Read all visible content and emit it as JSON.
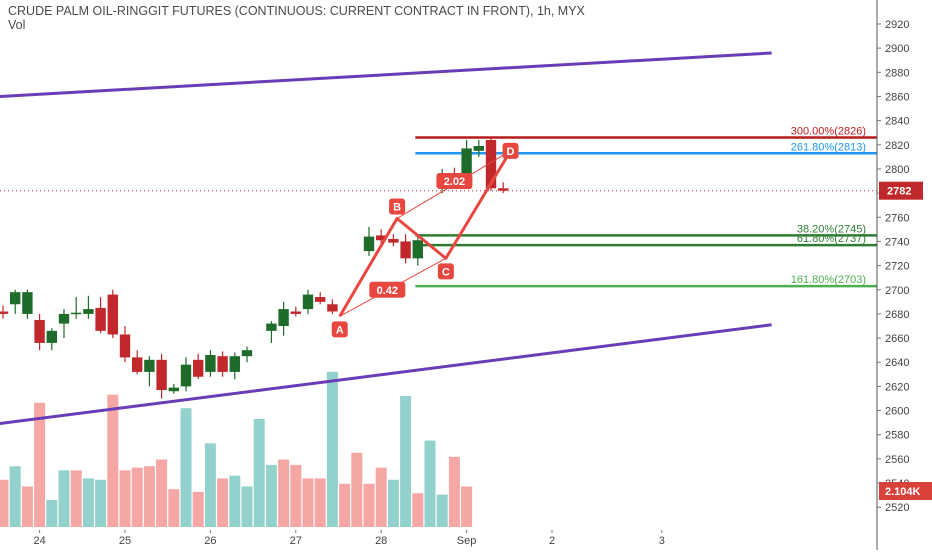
{
  "header": {
    "title": "CRUDE PALM OIL-RINGGIT FUTURES (CONTINUOUS: CURRENT CONTRACT IN FRONT), 1h, MYX",
    "volume_label": "Vol"
  },
  "colors": {
    "up": "#1e6b2a",
    "down": "#c0282b",
    "vol_up": "#93d2cc",
    "vol_down": "#f4a7a5",
    "channel": "#6a3db8",
    "pattern": "#e8473f",
    "fib_300": "#b71c1c",
    "fib_2618": "#2196f3",
    "fib_382": "#2e7d32",
    "fib_618": "#2e7d32",
    "fib_1618": "#4caf50",
    "price_badge": "#c0282b",
    "volume_badge": "#d9413b"
  },
  "chart_data": {
    "type": "candlestick",
    "title": "CRUDE PALM OIL-RINGGIT FUTURES (CONTINUOUS: CURRENT CONTRACT IN FRONT), 1h, MYX",
    "x_ticks": [
      {
        "label": "24",
        "bar": 3
      },
      {
        "label": "25",
        "bar": 10
      },
      {
        "label": "26",
        "bar": 17
      },
      {
        "label": "27",
        "bar": 24
      },
      {
        "label": "28",
        "bar": 31
      },
      {
        "label": "Sep",
        "bar": 38
      },
      {
        "label": "2",
        "bar": 45
      },
      {
        "label": "3",
        "bar": 54
      }
    ],
    "y_ticks": [
      2520,
      2540,
      2560,
      2580,
      2600,
      2620,
      2640,
      2660,
      2680,
      2700,
      2720,
      2740,
      2760,
      2780,
      2800,
      2820,
      2840,
      2860,
      2880,
      2900,
      2920
    ],
    "ylim": [
      2510,
      2930
    ],
    "candles": [
      {
        "o": 2682,
        "h": 2687,
        "l": 2676,
        "c": 2680
      },
      {
        "o": 2688,
        "h": 2700,
        "l": 2680,
        "c": 2698
      },
      {
        "o": 2680,
        "h": 2700,
        "l": 2676,
        "c": 2698
      },
      {
        "o": 2675,
        "h": 2680,
        "l": 2650,
        "c": 2656
      },
      {
        "o": 2656,
        "h": 2668,
        "l": 2650,
        "c": 2666
      },
      {
        "o": 2672,
        "h": 2684,
        "l": 2660,
        "c": 2680
      },
      {
        "o": 2680,
        "h": 2694,
        "l": 2676,
        "c": 2681
      },
      {
        "o": 2680,
        "h": 2695,
        "l": 2676,
        "c": 2684
      },
      {
        "o": 2685,
        "h": 2694,
        "l": 2664,
        "c": 2666
      },
      {
        "o": 2696,
        "h": 2700,
        "l": 2660,
        "c": 2663
      },
      {
        "o": 2663,
        "h": 2670,
        "l": 2640,
        "c": 2644
      },
      {
        "o": 2644,
        "h": 2650,
        "l": 2630,
        "c": 2632
      },
      {
        "o": 2632,
        "h": 2645,
        "l": 2620,
        "c": 2642
      },
      {
        "o": 2642,
        "h": 2647,
        "l": 2610,
        "c": 2617
      },
      {
        "o": 2616,
        "h": 2622,
        "l": 2614,
        "c": 2619
      },
      {
        "o": 2620,
        "h": 2644,
        "l": 2616,
        "c": 2638
      },
      {
        "o": 2642,
        "h": 2647,
        "l": 2626,
        "c": 2628
      },
      {
        "o": 2632,
        "h": 2650,
        "l": 2628,
        "c": 2646
      },
      {
        "o": 2645,
        "h": 2649,
        "l": 2628,
        "c": 2632
      },
      {
        "o": 2632,
        "h": 2648,
        "l": 2626,
        "c": 2645
      },
      {
        "o": 2645,
        "h": 2653,
        "l": 2640,
        "c": 2650
      },
      {
        "o": 2666,
        "h": 2674,
        "l": 2656,
        "c": 2672
      },
      {
        "o": 2670,
        "h": 2690,
        "l": 2662,
        "c": 2684
      },
      {
        "o": 2682,
        "h": 2686,
        "l": 2678,
        "c": 2680
      },
      {
        "o": 2684,
        "h": 2700,
        "l": 2680,
        "c": 2696
      },
      {
        "o": 2694,
        "h": 2698,
        "l": 2688,
        "c": 2690
      },
      {
        "o": 2688,
        "h": 2692,
        "l": 2680,
        "c": 2682
      },
      {
        "o": 2732,
        "h": 2752,
        "l": 2728,
        "c": 2744
      },
      {
        "o": 2745,
        "h": 2750,
        "l": 2738,
        "c": 2741
      },
      {
        "o": 2742,
        "h": 2746,
        "l": 2736,
        "c": 2739
      },
      {
        "o": 2740,
        "h": 2746,
        "l": 2722,
        "c": 2726
      },
      {
        "o": 2726,
        "h": 2744,
        "l": 2720,
        "c": 2741
      },
      {
        "o": 2786,
        "h": 2800,
        "l": 2780,
        "c": 2796
      },
      {
        "o": 2796,
        "h": 2801,
        "l": 2786,
        "c": 2790
      },
      {
        "o": 2796,
        "h": 2824,
        "l": 2792,
        "c": 2817
      },
      {
        "o": 2815,
        "h": 2824,
        "l": 2810,
        "c": 2819
      },
      {
        "o": 2824,
        "h": 2826,
        "l": 2782,
        "c": 2784
      },
      {
        "o": 2784,
        "h": 2789,
        "l": 2780,
        "c": 2782
      }
    ],
    "candle_bars": [
      0,
      1,
      2,
      3,
      4,
      5,
      6,
      7,
      8,
      9,
      10,
      11,
      12,
      13,
      14,
      15,
      16,
      17,
      18,
      19,
      20,
      22,
      23,
      24,
      25,
      26,
      27,
      30,
      31,
      32,
      33,
      34,
      36,
      37,
      38,
      39,
      40,
      41
    ],
    "volume": [
      {
        "v": 0.35,
        "up": false
      },
      {
        "v": 0.45,
        "up": true
      },
      {
        "v": 0.3,
        "up": false
      },
      {
        "v": 0.92,
        "up": false
      },
      {
        "v": 0.2,
        "up": true
      },
      {
        "v": 0.42,
        "up": true
      },
      {
        "v": 0.42,
        "up": false
      },
      {
        "v": 0.36,
        "up": true
      },
      {
        "v": 0.35,
        "up": true
      },
      {
        "v": 0.98,
        "up": false
      },
      {
        "v": 0.42,
        "up": false
      },
      {
        "v": 0.44,
        "up": false
      },
      {
        "v": 0.45,
        "up": false
      },
      {
        "v": 0.5,
        "up": false
      },
      {
        "v": 0.28,
        "up": false
      },
      {
        "v": 0.88,
        "up": true
      },
      {
        "v": 0.26,
        "up": false
      },
      {
        "v": 0.62,
        "up": true
      },
      {
        "v": 0.36,
        "up": false
      },
      {
        "v": 0.38,
        "up": true
      },
      {
        "v": 0.3,
        "up": true
      },
      {
        "v": 0.8,
        "up": true
      },
      {
        "v": 0.46,
        "up": true
      },
      {
        "v": 0.5,
        "up": false
      },
      {
        "v": 0.46,
        "up": false
      },
      {
        "v": 0.36,
        "up": false
      },
      {
        "v": 0.36,
        "up": false
      },
      {
        "v": 1.15,
        "up": true
      },
      {
        "v": 0.32,
        "up": false
      },
      {
        "v": 0.55,
        "up": false
      },
      {
        "v": 0.32,
        "up": false
      },
      {
        "v": 0.44,
        "up": false
      },
      {
        "v": 0.35,
        "up": true
      },
      {
        "v": 0.97,
        "up": true
      },
      {
        "v": 0.25,
        "up": false
      },
      {
        "v": 0.64,
        "up": true
      },
      {
        "v": 0.24,
        "up": true
      },
      {
        "v": 0.52,
        "up": false
      },
      {
        "v": 0.3,
        "up": false
      }
    ],
    "volume_bars": [
      0,
      1,
      2,
      3,
      4,
      5,
      6,
      7,
      8,
      9,
      10,
      11,
      12,
      13,
      14,
      15,
      16,
      17,
      18,
      19,
      20,
      21,
      22,
      23,
      24,
      25,
      26,
      27,
      28,
      29,
      30,
      31,
      32,
      33,
      34,
      35,
      36,
      37,
      38
    ],
    "channel_lines": [
      {
        "from": {
          "bar": -2,
          "price": 2859
        },
        "to": {
          "bar": 63,
          "price": 2896
        }
      },
      {
        "from": {
          "bar": -2,
          "price": 2587
        },
        "to": {
          "bar": 63,
          "price": 2671
        }
      }
    ],
    "pattern_points": [
      {
        "label": "A",
        "bar": 27.6,
        "price": 2678
      },
      {
        "label": "B",
        "bar": 32.3,
        "price": 2759
      },
      {
        "label": "C",
        "bar": 36.3,
        "price": 2726
      },
      {
        "label": "D",
        "bar": 41.6,
        "price": 2815
      }
    ],
    "ratio_labels": [
      {
        "text": "0.42",
        "bar": 31.5,
        "price": 2700
      },
      {
        "text": "2.02",
        "bar": 37.0,
        "price": 2790
      }
    ],
    "fib_levels": [
      {
        "label": "300.00%(2826)",
        "price": 2826,
        "color_key": "fib_300"
      },
      {
        "label": "261.80%(2813)",
        "price": 2813,
        "color_key": "fib_2618"
      },
      {
        "label": "38.20%(2745)",
        "price": 2745,
        "color_key": "fib_382"
      },
      {
        "label": "61.80%(2737)",
        "price": 2737,
        "color_key": "fib_618"
      },
      {
        "label": "161.80%(2703)",
        "price": 2703,
        "color_key": "fib_1618"
      }
    ],
    "fib_start_bar": 33.8,
    "last_price": {
      "label": "2782",
      "value": 2782
    },
    "volume_badge": "2.104K"
  }
}
